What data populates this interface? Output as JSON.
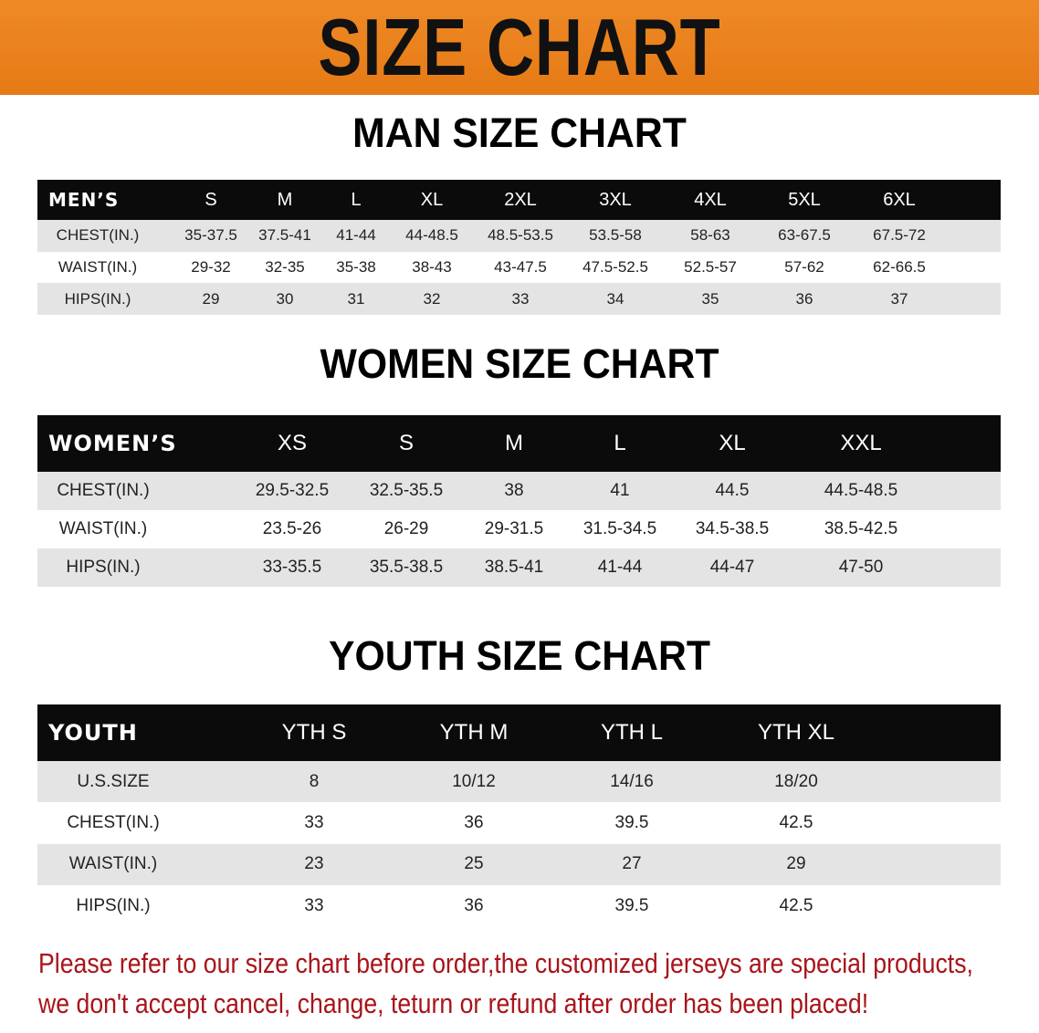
{
  "banner": {
    "title": "SIZE CHART",
    "color": "#e98020"
  },
  "men": {
    "title": "MAN SIZE CHART",
    "header": [
      "MEN’S",
      "S",
      "M",
      "L",
      "XL",
      "2XL",
      "3XL",
      "4XL",
      "5XL",
      "6XL"
    ],
    "rows": [
      [
        "CHEST(IN.)",
        "35-37.5",
        "37.5-41",
        "41-44",
        "44-48.5",
        "48.5-53.5",
        "53.5-58",
        "58-63",
        "63-67.5",
        "67.5-72"
      ],
      [
        "WAIST(IN.)",
        "29-32",
        "32-35",
        "35-38",
        "38-43",
        "43-47.5",
        "47.5-52.5",
        "52.5-57",
        "57-62",
        "62-66.5"
      ],
      [
        "HIPS(IN.)",
        "29",
        "30",
        "31",
        "32",
        "33",
        "34",
        "35",
        "36",
        "37"
      ]
    ]
  },
  "women": {
    "title": "WOMEN SIZE CHART",
    "header": [
      "WOMEN’S",
      "XS",
      "S",
      "M",
      "L",
      "XL",
      "XXL"
    ],
    "rows": [
      [
        "CHEST(IN.)",
        "29.5-32.5",
        "32.5-35.5",
        "38",
        "41",
        "44.5",
        "44.5-48.5"
      ],
      [
        "WAIST(IN.)",
        "23.5-26",
        "26-29",
        "29-31.5",
        "31.5-34.5",
        "34.5-38.5",
        "38.5-42.5"
      ],
      [
        "HIPS(IN.)",
        "33-35.5",
        "35.5-38.5",
        "38.5-41",
        "41-44",
        "44-47",
        "47-50"
      ]
    ]
  },
  "youth": {
    "title": "YOUTH SIZE CHART",
    "header": [
      "YOUTH",
      "YTH S",
      "YTH M",
      "YTH L",
      "YTH XL"
    ],
    "rows": [
      [
        "U.S.SIZE",
        "8",
        "10/12",
        "14/16",
        "18/20"
      ],
      [
        "CHEST(IN.)",
        "33",
        "36",
        "39.5",
        "42.5"
      ],
      [
        "WAIST(IN.)",
        "23",
        "25",
        "27",
        "29"
      ],
      [
        "HIPS(IN.)",
        "33",
        "36",
        "39.5",
        "42.5"
      ]
    ]
  },
  "note": {
    "line1": "Please refer to our size chart before order,the customized jerseys are special products,",
    "line2": "we don't accept cancel, change, teturn or refund after order has been placed!",
    "color": "#a8141a"
  }
}
